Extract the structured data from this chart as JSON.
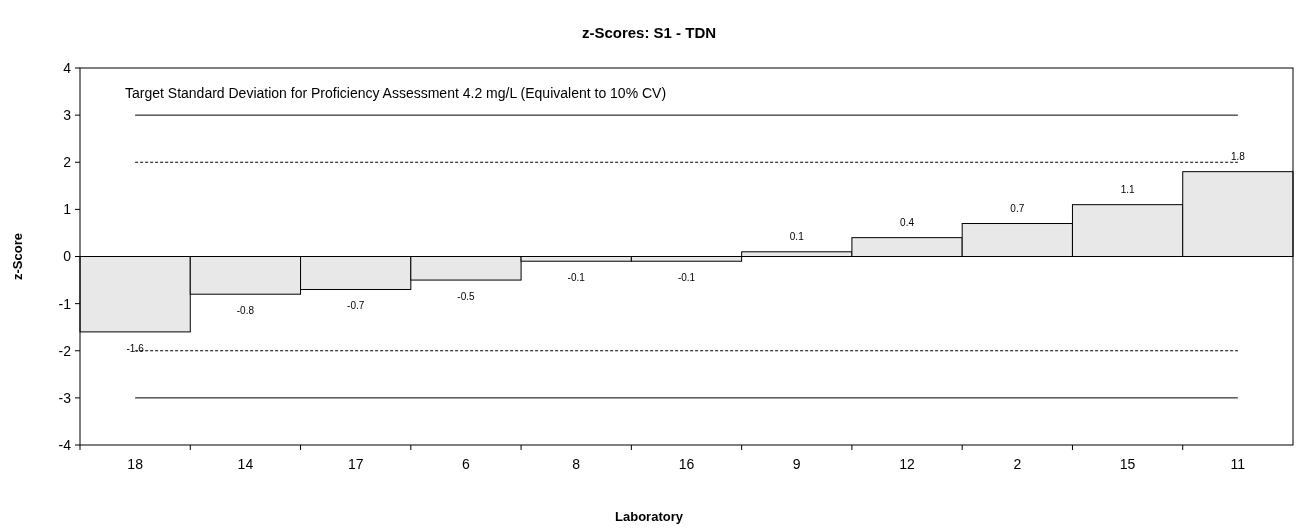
{
  "chart_data": {
    "type": "bar",
    "title": "z-Scores: S1 - TDN",
    "xlabel": "Laboratory",
    "ylabel": "z-Score",
    "annotations": [
      "Target Standard Deviation for Proficiency Assessment 4.2 mg/L  (Equivalent to 10% CV)"
    ],
    "categories": [
      "18",
      "14",
      "17",
      "6",
      "8",
      "16",
      "9",
      "12",
      "2",
      "15",
      "11"
    ],
    "values": [
      -1.6,
      -0.8,
      -0.7,
      -0.5,
      -0.1,
      -0.1,
      0.1,
      0.4,
      0.7,
      1.1,
      1.8
    ],
    "color": "#e8e8e8",
    "data_labels": true,
    "ylim": [
      -4,
      4
    ],
    "yticks": [
      -4,
      -3,
      -2,
      -1,
      0,
      1,
      2,
      3,
      4
    ],
    "grid": false,
    "ref_lines": [
      {
        "axis": "y",
        "value": 3,
        "line_style": "solid",
        "color": "#000000"
      },
      {
        "axis": "y",
        "value": 2,
        "line_style": "dashed",
        "color": "#000000"
      },
      {
        "axis": "y",
        "value": -2,
        "line_style": "dashed",
        "color": "#000000"
      },
      {
        "axis": "y",
        "value": -3,
        "line_style": "solid",
        "color": "#000000"
      }
    ]
  }
}
